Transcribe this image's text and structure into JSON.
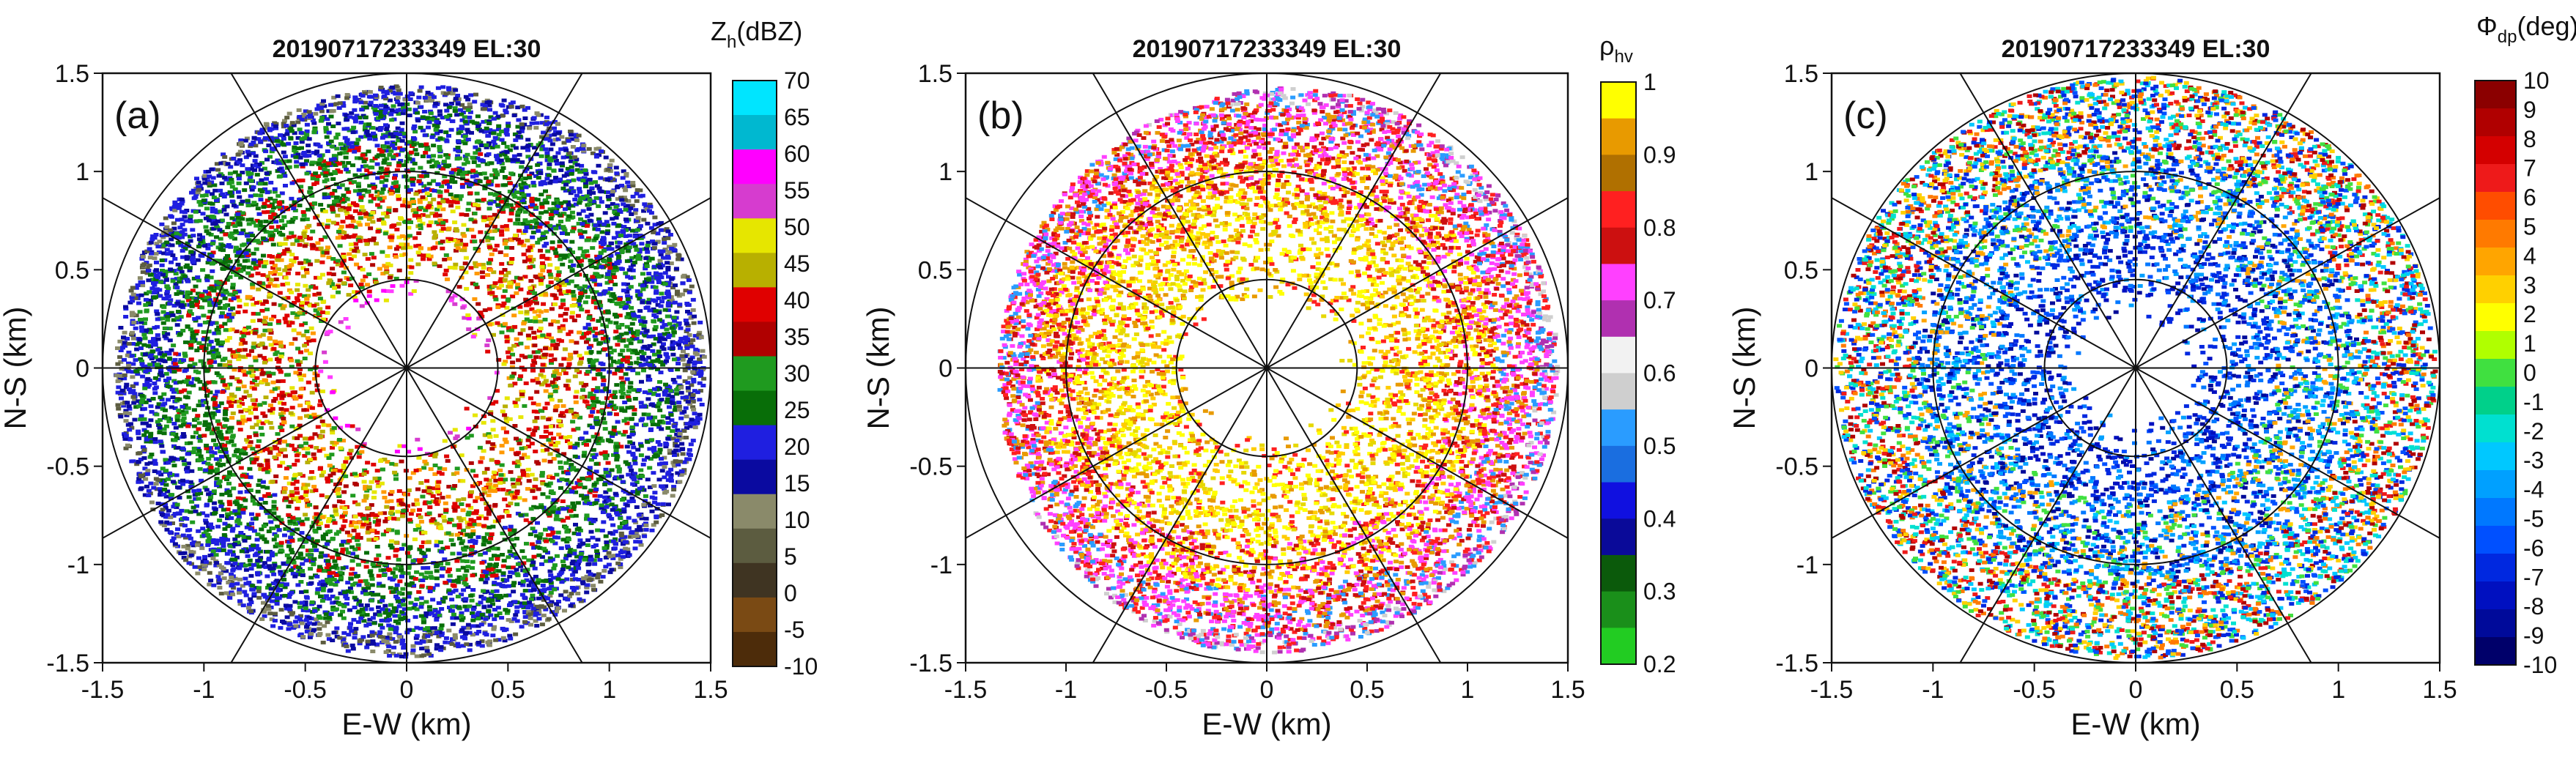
{
  "chart_data": [
    {
      "type": "radar-ppi",
      "panel_label": "(a)",
      "title": "20190717233349 EL:30",
      "xlabel": "E-W (km)",
      "ylabel": "N-S (km)",
      "xlim": [
        -1.5,
        1.5
      ],
      "ylim": [
        -1.5,
        1.5
      ],
      "xticks": [
        "-1.5",
        "-1",
        "-0.5",
        "0",
        "0.5",
        "1",
        "1.5"
      ],
      "yticks": [
        "-1.5",
        "-1",
        "-0.5",
        "0",
        "0.5",
        "1",
        "1.5"
      ],
      "range_rings_km": [
        0.45,
        1.0,
        1.5
      ],
      "blank_center_radius_km": 0.35,
      "colorbar": {
        "title": "Z",
        "subscript": "h",
        "title_suffix": "(dBZ)",
        "ticks": [
          "70",
          "65",
          "60",
          "55",
          "50",
          "45",
          "40",
          "35",
          "30",
          "25",
          "20",
          "15",
          "10",
          "5",
          "0",
          "-5",
          "-10"
        ],
        "colors": [
          "#00e5ff",
          "#00b8d0",
          "#ff00ff",
          "#d63ccf",
          "#e6e600",
          "#b8b000",
          "#e00000",
          "#b00000",
          "#1f9a1f",
          "#086e08",
          "#1f1fe0",
          "#0a0aa0",
          "#8a8a6a",
          "#5c5c40",
          "#3f3422",
          "#7a4a14",
          "#4d2c0a"
        ]
      },
      "annotation": "Zh: 40-55 dBZ near 0.35-0.9 km, decreasing to 10-25 dBZ toward 1.5 km"
    },
    {
      "type": "radar-ppi",
      "panel_label": "(b)",
      "title": "20190717233349 EL:30",
      "xlabel": "E-W (km)",
      "ylabel": "N-S (km)",
      "xlim": [
        -1.5,
        1.5
      ],
      "ylim": [
        -1.5,
        1.5
      ],
      "xticks": [
        "-1.5",
        "-1",
        "-0.5",
        "0",
        "0.5",
        "1",
        "1.5"
      ],
      "yticks": [
        "-1.5",
        "-1",
        "-0.5",
        "0",
        "0.5",
        "1",
        "1.5"
      ],
      "range_rings_km": [
        0.45,
        1.0,
        1.5
      ],
      "blank_center_radius_km": 0.35,
      "colorbar": {
        "title": "ρ",
        "subscript": "hv",
        "title_suffix": "",
        "ticks": [
          "1",
          "0.9",
          "0.8",
          "0.7",
          "0.6",
          "0.5",
          "0.4",
          "0.3",
          "0.2"
        ],
        "colors": [
          "#ffff00",
          "#e89a00",
          "#b07000",
          "#ff2020",
          "#cc1010",
          "#ff40ff",
          "#b030b0",
          "#f2f2f2",
          "#cfcfcf",
          "#2a9cff",
          "#1a6ee0",
          "#1010e0",
          "#0a0a99",
          "#0b5a0b",
          "#1a8f1a",
          "#22cc22"
        ]
      },
      "annotation": "ρhv: 0.9-1 close to radar, falling to 0.7-0.8 at outer ranges"
    },
    {
      "type": "radar-ppi",
      "panel_label": "(c)",
      "title": "20190717233349 EL:30",
      "xlabel": "E-W (km)",
      "ylabel": "N-S (km)",
      "xlim": [
        -1.5,
        1.5
      ],
      "ylim": [
        -1.5,
        1.5
      ],
      "xticks": [
        "-1.5",
        "-1",
        "-0.5",
        "0",
        "0.5",
        "1",
        "1.5"
      ],
      "yticks": [
        "-1.5",
        "-1",
        "-0.5",
        "0",
        "0.5",
        "1",
        "1.5"
      ],
      "range_rings_km": [
        0.45,
        1.0,
        1.5
      ],
      "blank_center_radius_km": 0.25,
      "colorbar": {
        "title": "Φ",
        "subscript": "dp",
        "title_suffix": "(deg)",
        "ticks": [
          "10",
          "9",
          "8",
          "7",
          "6",
          "5",
          "4",
          "3",
          "2",
          "1",
          "0",
          "-1",
          "-2",
          "-3",
          "-4",
          "-5",
          "-6",
          "-7",
          "-8",
          "-9",
          "-10"
        ],
        "colors": [
          "#8b0000",
          "#b00000",
          "#d40000",
          "#ee1a1a",
          "#ff4d00",
          "#ff7a00",
          "#ffa500",
          "#ffd000",
          "#ffff00",
          "#b0ff00",
          "#40e040",
          "#00d08a",
          "#00e0d0",
          "#00c8ff",
          "#00a0ff",
          "#0078ff",
          "#0050ff",
          "#0028e0",
          "#0010c0",
          "#000a9a",
          "#00006a"
        ]
      },
      "annotation": "Φdp: -10 to -6 deg dominant, positive values scattered at outer ranges"
    }
  ]
}
